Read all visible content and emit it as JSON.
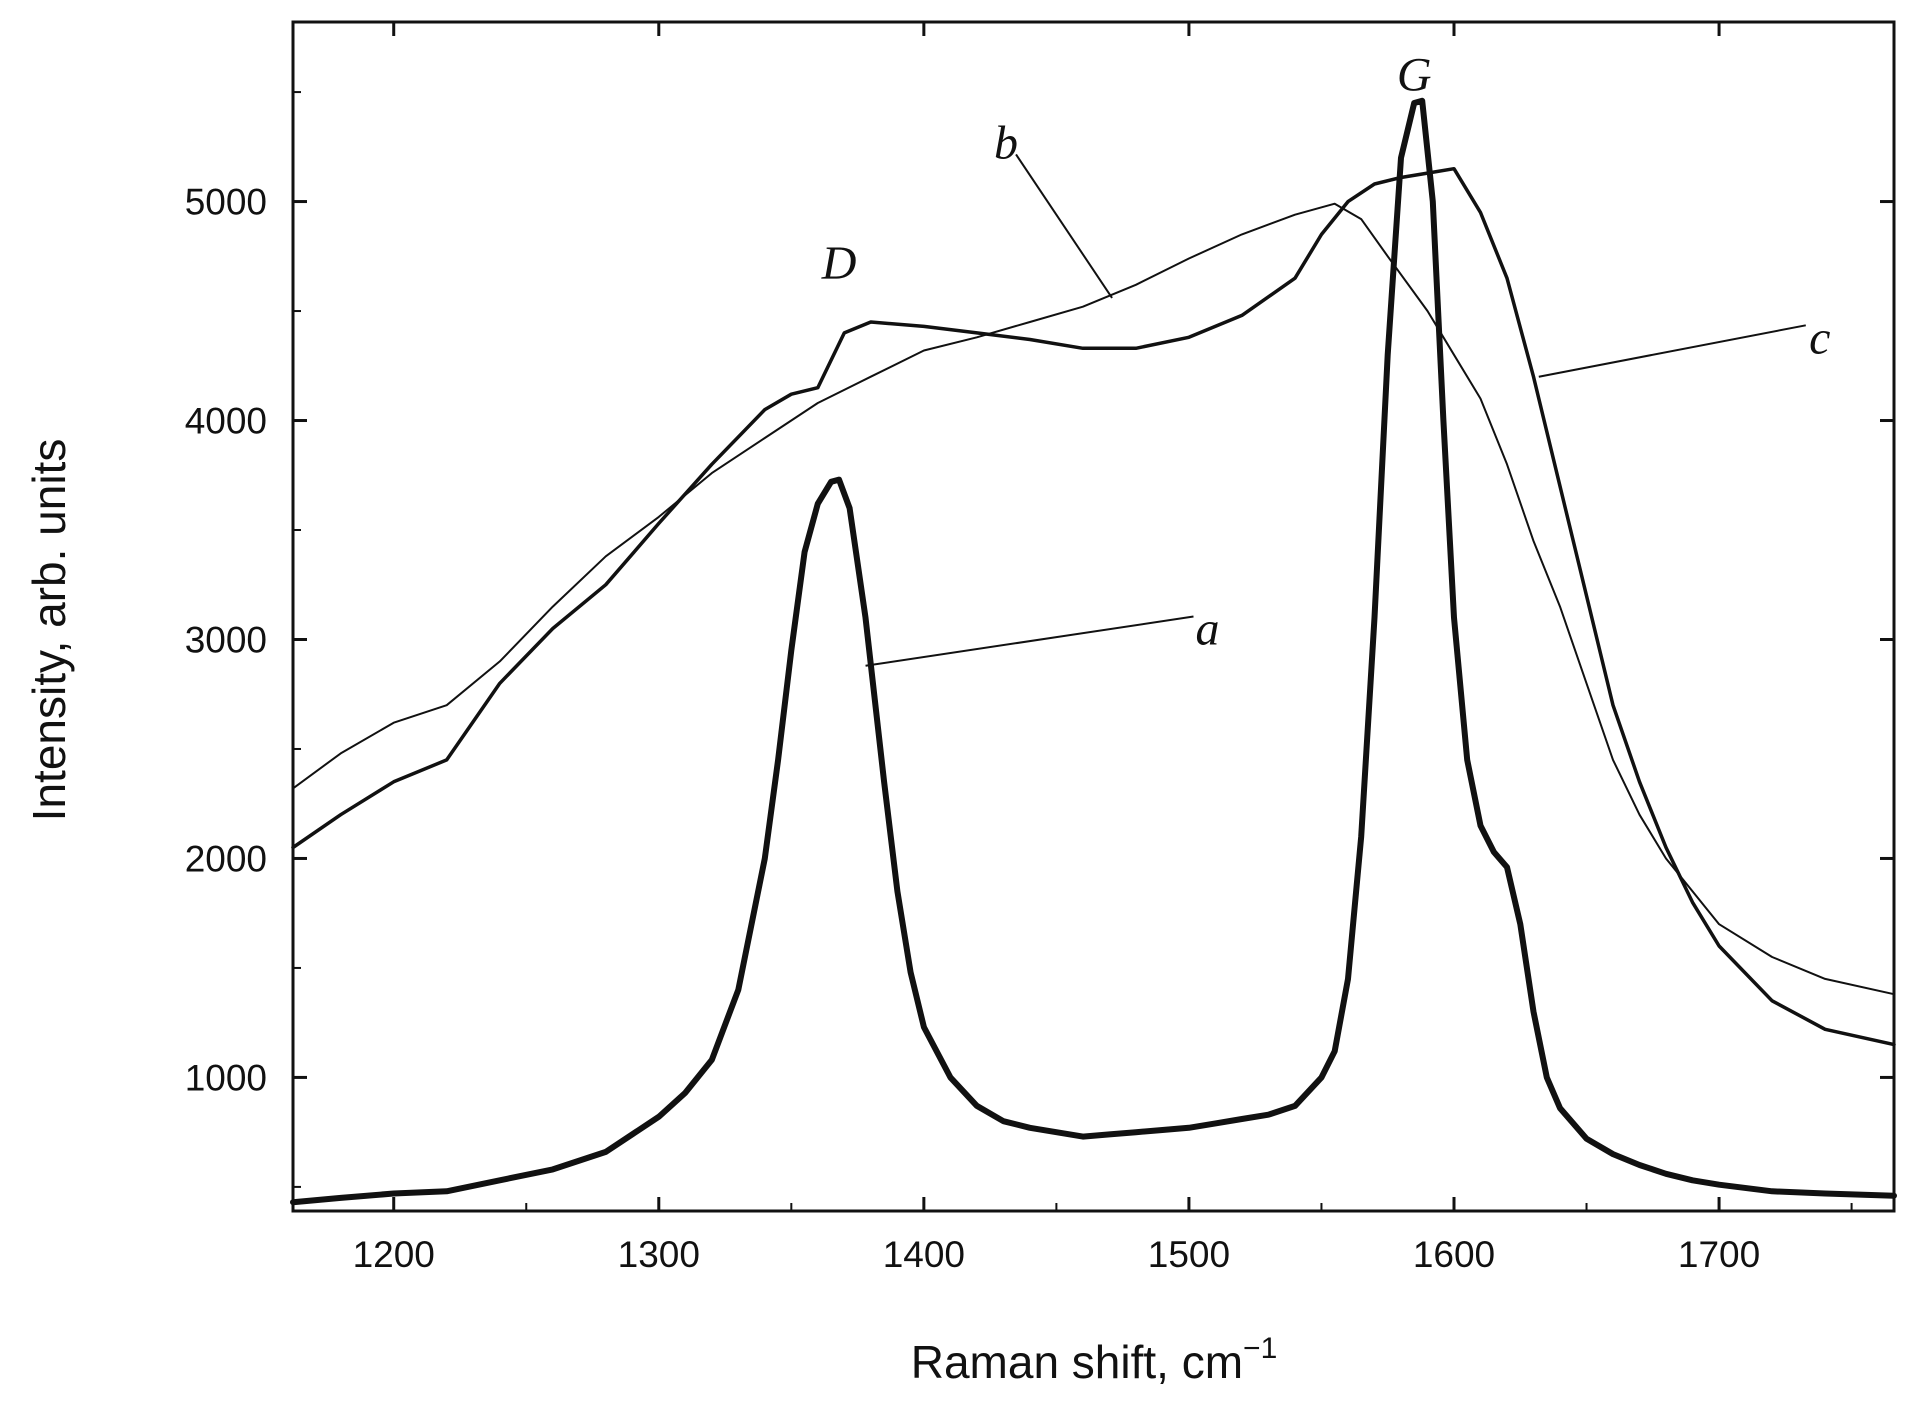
{
  "chart_data": {
    "type": "line",
    "title": "",
    "xlabel": "Raman shift, cm",
    "xlabel_sup": "−1",
    "ylabel": "Intensity, arb. units",
    "xlim": [
      1162,
      1766
    ],
    "ylim": [
      390,
      5820
    ],
    "x_ticks": [
      1200,
      1300,
      1400,
      1500,
      1600,
      1700
    ],
    "x_tick_labels": [
      "1200",
      "1300",
      "1400",
      "1500",
      "1600",
      "1700"
    ],
    "y_ticks": [
      1000,
      2000,
      3000,
      4000,
      5000
    ],
    "y_tick_labels": [
      "1000",
      "2000",
      "3000",
      "4000",
      "5000"
    ],
    "grid": false,
    "annotations": [
      {
        "text": "D",
        "x": 1368,
        "y": 4720
      },
      {
        "text": "G",
        "x": 1585,
        "y": 5580
      },
      {
        "text": "a",
        "x": 1507,
        "y": 3050,
        "line_to": {
          "x": 1378,
          "y": 2880
        }
      },
      {
        "text": "b",
        "x": 1431,
        "y": 5270,
        "line_to": {
          "x": 1471,
          "y": 4560
        }
      },
      {
        "text": "c",
        "x": 1738,
        "y": 4380,
        "line_to": {
          "x": 1632,
          "y": 4200
        }
      }
    ],
    "series": [
      {
        "name": "a",
        "stroke_width": 6,
        "x": [
          1162,
          1180,
          1200,
          1220,
          1240,
          1260,
          1280,
          1300,
          1310,
          1320,
          1330,
          1340,
          1345,
          1350,
          1355,
          1360,
          1365,
          1368,
          1372,
          1378,
          1385,
          1390,
          1395,
          1400,
          1410,
          1420,
          1430,
          1440,
          1450,
          1460,
          1470,
          1480,
          1490,
          1500,
          1510,
          1520,
          1530,
          1540,
          1550,
          1555,
          1560,
          1565,
          1570,
          1575,
          1580,
          1585,
          1588,
          1592,
          1596,
          1600,
          1605,
          1610,
          1615,
          1620,
          1625,
          1630,
          1635,
          1640,
          1650,
          1660,
          1670,
          1680,
          1690,
          1700,
          1720,
          1740,
          1766
        ],
        "y": [
          430,
          450,
          470,
          480,
          530,
          580,
          660,
          820,
          930,
          1080,
          1400,
          2000,
          2450,
          2950,
          3400,
          3620,
          3720,
          3730,
          3600,
          3100,
          2350,
          1850,
          1480,
          1230,
          1000,
          870,
          800,
          770,
          750,
          730,
          740,
          750,
          760,
          770,
          790,
          810,
          830,
          870,
          1000,
          1120,
          1450,
          2100,
          3100,
          4300,
          5200,
          5450,
          5460,
          5000,
          4000,
          3100,
          2450,
          2150,
          2030,
          1960,
          1700,
          1300,
          1000,
          860,
          720,
          650,
          600,
          560,
          530,
          510,
          480,
          470,
          460
        ]
      },
      {
        "name": "b",
        "stroke_width": 2,
        "x": [
          1162,
          1180,
          1200,
          1220,
          1240,
          1260,
          1280,
          1300,
          1320,
          1340,
          1360,
          1380,
          1400,
          1420,
          1440,
          1460,
          1480,
          1500,
          1520,
          1540,
          1555,
          1565,
          1575,
          1590,
          1600,
          1610,
          1620,
          1630,
          1640,
          1650,
          1660,
          1670,
          1680,
          1700,
          1720,
          1740,
          1766
        ],
        "y": [
          2320,
          2480,
          2620,
          2700,
          2900,
          3150,
          3380,
          3560,
          3760,
          3920,
          4080,
          4200,
          4320,
          4380,
          4450,
          4520,
          4620,
          4740,
          4850,
          4940,
          4990,
          4920,
          4750,
          4500,
          4300,
          4100,
          3800,
          3450,
          3150,
          2800,
          2450,
          2200,
          2000,
          1700,
          1550,
          1450,
          1380
        ]
      },
      {
        "name": "c",
        "stroke_width": 3.5,
        "x": [
          1162,
          1180,
          1200,
          1220,
          1240,
          1260,
          1280,
          1300,
          1320,
          1340,
          1350,
          1360,
          1370,
          1380,
          1400,
          1420,
          1440,
          1460,
          1480,
          1500,
          1520,
          1540,
          1550,
          1560,
          1570,
          1580,
          1590,
          1600,
          1610,
          1620,
          1630,
          1640,
          1650,
          1660,
          1670,
          1680,
          1690,
          1700,
          1720,
          1740,
          1766
        ],
        "y": [
          2050,
          2200,
          2350,
          2450,
          2800,
          3050,
          3250,
          3530,
          3800,
          4050,
          4120,
          4150,
          4400,
          4450,
          4430,
          4400,
          4370,
          4330,
          4330,
          4380,
          4480,
          4650,
          4850,
          5000,
          5080,
          5110,
          5130,
          5150,
          4950,
          4650,
          4200,
          3700,
          3200,
          2700,
          2350,
          2050,
          1800,
          1600,
          1350,
          1220,
          1150
        ]
      }
    ]
  }
}
